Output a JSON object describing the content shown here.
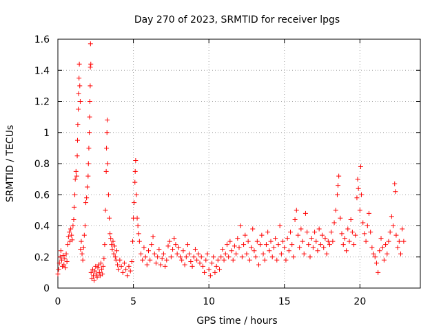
{
  "chart_data": {
    "type": "scatter",
    "title": "Day 270 of 2023, SRMTID for receiver lpgs",
    "xlabel": "GPS time / hours",
    "ylabel": "SRMTID / TECUs",
    "xlim": [
      0,
      24
    ],
    "ylim": [
      0,
      1.6
    ],
    "xticks": [
      0,
      5,
      10,
      15,
      20
    ],
    "xtick_labels": [
      "0",
      "5",
      "10",
      "15",
      "20"
    ],
    "yticks": [
      0,
      0.2,
      0.4,
      0.6,
      0.8,
      1,
      1.2,
      1.4,
      1.6
    ],
    "ytick_labels": [
      "0",
      "0.2",
      "0.4",
      "0.6",
      "0.8",
      "1",
      "1.2",
      "1.4",
      "1.6"
    ],
    "grid": true,
    "marker": "+",
    "color": "#ff0000",
    "series": [
      {
        "name": "SRMTID",
        "points": [
          [
            0.0,
            0.09
          ],
          [
            0.05,
            0.12
          ],
          [
            0.1,
            0.16
          ],
          [
            0.15,
            0.2
          ],
          [
            0.2,
            0.24
          ],
          [
            0.25,
            0.18
          ],
          [
            0.3,
            0.14
          ],
          [
            0.35,
            0.21
          ],
          [
            0.4,
            0.15
          ],
          [
            0.45,
            0.19
          ],
          [
            0.5,
            0.13
          ],
          [
            0.55,
            0.22
          ],
          [
            0.6,
            0.17
          ],
          [
            0.65,
            0.28
          ],
          [
            0.7,
            0.33
          ],
          [
            0.75,
            0.36
          ],
          [
            0.8,
            0.3
          ],
          [
            0.85,
            0.38
          ],
          [
            0.9,
            0.34
          ],
          [
            0.95,
            0.31
          ],
          [
            1.0,
            0.4
          ],
          [
            1.05,
            0.44
          ],
          [
            1.08,
            0.52
          ],
          [
            1.12,
            0.6
          ],
          [
            1.15,
            0.7
          ],
          [
            1.2,
            0.75
          ],
          [
            1.25,
            0.72
          ],
          [
            1.28,
            0.85
          ],
          [
            1.3,
            0.95
          ],
          [
            1.32,
            1.05
          ],
          [
            1.35,
            1.15
          ],
          [
            1.37,
            1.25
          ],
          [
            1.4,
            1.35
          ],
          [
            1.42,
            1.44
          ],
          [
            1.45,
            1.3
          ],
          [
            1.48,
            1.2
          ],
          [
            1.5,
            0.25
          ],
          [
            1.55,
            0.3
          ],
          [
            1.6,
            0.22
          ],
          [
            1.65,
            0.18
          ],
          [
            1.7,
            0.26
          ],
          [
            1.75,
            0.34
          ],
          [
            1.8,
            0.4
          ],
          [
            1.85,
            0.55
          ],
          [
            1.9,
            0.58
          ],
          [
            1.95,
            0.65
          ],
          [
            2.0,
            0.72
          ],
          [
            2.02,
            0.8
          ],
          [
            2.05,
            0.9
          ],
          [
            2.08,
            1.0
          ],
          [
            2.1,
            1.1
          ],
          [
            2.12,
            1.2
          ],
          [
            2.14,
            1.3
          ],
          [
            2.15,
            1.42
          ],
          [
            2.16,
            1.57
          ],
          [
            2.18,
            1.44
          ],
          [
            2.2,
            0.1
          ],
          [
            2.25,
            0.06
          ],
          [
            2.3,
            0.12
          ],
          [
            2.35,
            0.08
          ],
          [
            2.4,
            0.05
          ],
          [
            2.45,
            0.11
          ],
          [
            2.5,
            0.14
          ],
          [
            2.55,
            0.09
          ],
          [
            2.6,
            0.07
          ],
          [
            2.65,
            0.13
          ],
          [
            2.7,
            0.15
          ],
          [
            2.75,
            0.1
          ],
          [
            2.8,
            0.08
          ],
          [
            2.85,
            0.16
          ],
          [
            2.9,
            0.12
          ],
          [
            2.95,
            0.09
          ],
          [
            3.0,
            0.14
          ],
          [
            3.05,
            0.19
          ],
          [
            3.1,
            0.28
          ],
          [
            3.15,
            0.5
          ],
          [
            3.2,
            0.75
          ],
          [
            3.22,
            0.9
          ],
          [
            3.25,
            1.0
          ],
          [
            3.27,
            1.08
          ],
          [
            3.3,
            0.8
          ],
          [
            3.35,
            0.6
          ],
          [
            3.4,
            0.45
          ],
          [
            3.45,
            0.35
          ],
          [
            3.5,
            0.32
          ],
          [
            3.55,
            0.28
          ],
          [
            3.6,
            0.25
          ],
          [
            3.65,
            0.3
          ],
          [
            3.7,
            0.22
          ],
          [
            3.75,
            0.27
          ],
          [
            3.8,
            0.2
          ],
          [
            3.85,
            0.18
          ],
          [
            3.9,
            0.24
          ],
          [
            3.95,
            0.15
          ],
          [
            4.0,
            0.12
          ],
          [
            4.1,
            0.18
          ],
          [
            4.2,
            0.14
          ],
          [
            4.3,
            0.1
          ],
          [
            4.4,
            0.16
          ],
          [
            4.5,
            0.12
          ],
          [
            4.6,
            0.08
          ],
          [
            4.7,
            0.14
          ],
          [
            4.8,
            0.11
          ],
          [
            4.9,
            0.17
          ],
          [
            4.95,
            0.3
          ],
          [
            5.0,
            0.45
          ],
          [
            5.05,
            0.55
          ],
          [
            5.1,
            0.68
          ],
          [
            5.12,
            0.75
          ],
          [
            5.15,
            0.82
          ],
          [
            5.2,
            0.6
          ],
          [
            5.25,
            0.45
          ],
          [
            5.3,
            0.4
          ],
          [
            5.35,
            0.35
          ],
          [
            5.4,
            0.3
          ],
          [
            5.5,
            0.22
          ],
          [
            5.6,
            0.18
          ],
          [
            5.7,
            0.26
          ],
          [
            5.8,
            0.2
          ],
          [
            5.9,
            0.15
          ],
          [
            6.0,
            0.24
          ],
          [
            6.1,
            0.18
          ],
          [
            6.2,
            0.28
          ],
          [
            6.3,
            0.33
          ],
          [
            6.4,
            0.22
          ],
          [
            6.5,
            0.16
          ],
          [
            6.6,
            0.2
          ],
          [
            6.7,
            0.25
          ],
          [
            6.8,
            0.15
          ],
          [
            6.9,
            0.19
          ],
          [
            7.0,
            0.22
          ],
          [
            7.1,
            0.14
          ],
          [
            7.2,
            0.18
          ],
          [
            7.3,
            0.27
          ],
          [
            7.4,
            0.3
          ],
          [
            7.5,
            0.2
          ],
          [
            7.6,
            0.25
          ],
          [
            7.7,
            0.32
          ],
          [
            7.8,
            0.28
          ],
          [
            7.9,
            0.22
          ],
          [
            8.0,
            0.26
          ],
          [
            8.1,
            0.2
          ],
          [
            8.2,
            0.18
          ],
          [
            8.3,
            0.24
          ],
          [
            8.4,
            0.15
          ],
          [
            8.5,
            0.2
          ],
          [
            8.6,
            0.28
          ],
          [
            8.7,
            0.22
          ],
          [
            8.8,
            0.17
          ],
          [
            8.9,
            0.14
          ],
          [
            9.0,
            0.2
          ],
          [
            9.1,
            0.25
          ],
          [
            9.2,
            0.18
          ],
          [
            9.3,
            0.22
          ],
          [
            9.4,
            0.16
          ],
          [
            9.5,
            0.2
          ],
          [
            9.6,
            0.14
          ],
          [
            9.7,
            0.1
          ],
          [
            9.8,
            0.18
          ],
          [
            9.9,
            0.22
          ],
          [
            10.0,
            0.12
          ],
          [
            10.1,
            0.08
          ],
          [
            10.2,
            0.16
          ],
          [
            10.3,
            0.2
          ],
          [
            10.4,
            0.1
          ],
          [
            10.5,
            0.14
          ],
          [
            10.6,
            0.18
          ],
          [
            10.7,
            0.12
          ],
          [
            10.8,
            0.2
          ],
          [
            10.9,
            0.25
          ],
          [
            11.0,
            0.18
          ],
          [
            11.1,
            0.22
          ],
          [
            11.2,
            0.28
          ],
          [
            11.3,
            0.2
          ],
          [
            11.4,
            0.3
          ],
          [
            11.5,
            0.24
          ],
          [
            11.6,
            0.18
          ],
          [
            11.7,
            0.27
          ],
          [
            11.8,
            0.22
          ],
          [
            11.9,
            0.32
          ],
          [
            12.0,
            0.26
          ],
          [
            12.1,
            0.4
          ],
          [
            12.2,
            0.2
          ],
          [
            12.3,
            0.28
          ],
          [
            12.4,
            0.34
          ],
          [
            12.5,
            0.22
          ],
          [
            12.6,
            0.3
          ],
          [
            12.7,
            0.18
          ],
          [
            12.8,
            0.26
          ],
          [
            12.9,
            0.38
          ],
          [
            13.0,
            0.24
          ],
          [
            13.1,
            0.2
          ],
          [
            13.2,
            0.3
          ],
          [
            13.3,
            0.15
          ],
          [
            13.4,
            0.28
          ],
          [
            13.5,
            0.34
          ],
          [
            13.6,
            0.22
          ],
          [
            13.7,
            0.18
          ],
          [
            13.8,
            0.28
          ],
          [
            13.9,
            0.36
          ],
          [
            14.0,
            0.24
          ],
          [
            14.1,
            0.3
          ],
          [
            14.2,
            0.2
          ],
          [
            14.3,
            0.26
          ],
          [
            14.4,
            0.32
          ],
          [
            14.5,
            0.18
          ],
          [
            14.6,
            0.28
          ],
          [
            14.7,
            0.4
          ],
          [
            14.8,
            0.22
          ],
          [
            14.9,
            0.3
          ],
          [
            15.0,
            0.26
          ],
          [
            15.1,
            0.18
          ],
          [
            15.2,
            0.32
          ],
          [
            15.3,
            0.24
          ],
          [
            15.4,
            0.36
          ],
          [
            15.5,
            0.28
          ],
          [
            15.6,
            0.2
          ],
          [
            15.7,
            0.44
          ],
          [
            15.8,
            0.5
          ],
          [
            15.9,
            0.34
          ],
          [
            16.0,
            0.26
          ],
          [
            16.1,
            0.38
          ],
          [
            16.2,
            0.3
          ],
          [
            16.3,
            0.22
          ],
          [
            16.4,
            0.48
          ],
          [
            16.5,
            0.36
          ],
          [
            16.6,
            0.28
          ],
          [
            16.7,
            0.2
          ],
          [
            16.8,
            0.32
          ],
          [
            16.9,
            0.26
          ],
          [
            17.0,
            0.36
          ],
          [
            17.1,
            0.3
          ],
          [
            17.2,
            0.24
          ],
          [
            17.3,
            0.38
          ],
          [
            17.4,
            0.28
          ],
          [
            17.5,
            0.34
          ],
          [
            17.6,
            0.26
          ],
          [
            17.7,
            0.32
          ],
          [
            17.8,
            0.22
          ],
          [
            17.9,
            0.3
          ],
          [
            18.0,
            0.28
          ],
          [
            18.1,
            0.36
          ],
          [
            18.2,
            0.3
          ],
          [
            18.3,
            0.42
          ],
          [
            18.4,
            0.5
          ],
          [
            18.5,
            0.6
          ],
          [
            18.55,
            0.66
          ],
          [
            18.6,
            0.72
          ],
          [
            18.7,
            0.45
          ],
          [
            18.8,
            0.35
          ],
          [
            18.9,
            0.28
          ],
          [
            19.0,
            0.32
          ],
          [
            19.1,
            0.24
          ],
          [
            19.2,
            0.38
          ],
          [
            19.3,
            0.3
          ],
          [
            19.4,
            0.44
          ],
          [
            19.5,
            0.36
          ],
          [
            19.6,
            0.28
          ],
          [
            19.7,
            0.34
          ],
          [
            19.8,
            0.58
          ],
          [
            19.85,
            0.7
          ],
          [
            19.9,
            0.64
          ],
          [
            20.0,
            0.5
          ],
          [
            20.05,
            0.78
          ],
          [
            20.1,
            0.6
          ],
          [
            20.2,
            0.42
          ],
          [
            20.3,
            0.35
          ],
          [
            20.4,
            0.3
          ],
          [
            20.5,
            0.4
          ],
          [
            20.6,
            0.48
          ],
          [
            20.7,
            0.36
          ],
          [
            20.8,
            0.26
          ],
          [
            20.9,
            0.22
          ],
          [
            21.0,
            0.2
          ],
          [
            21.1,
            0.16
          ],
          [
            21.2,
            0.1
          ],
          [
            21.3,
            0.24
          ],
          [
            21.4,
            0.32
          ],
          [
            21.5,
            0.26
          ],
          [
            21.6,
            0.18
          ],
          [
            21.7,
            0.28
          ],
          [
            21.8,
            0.22
          ],
          [
            21.9,
            0.3
          ],
          [
            22.0,
            0.36
          ],
          [
            22.1,
            0.46
          ],
          [
            22.2,
            0.4
          ],
          [
            22.3,
            0.67
          ],
          [
            22.35,
            0.62
          ],
          [
            22.4,
            0.34
          ],
          [
            22.5,
            0.26
          ],
          [
            22.6,
            0.3
          ],
          [
            22.7,
            0.22
          ],
          [
            22.8,
            0.38
          ],
          [
            22.9,
            0.3
          ]
        ]
      }
    ]
  }
}
